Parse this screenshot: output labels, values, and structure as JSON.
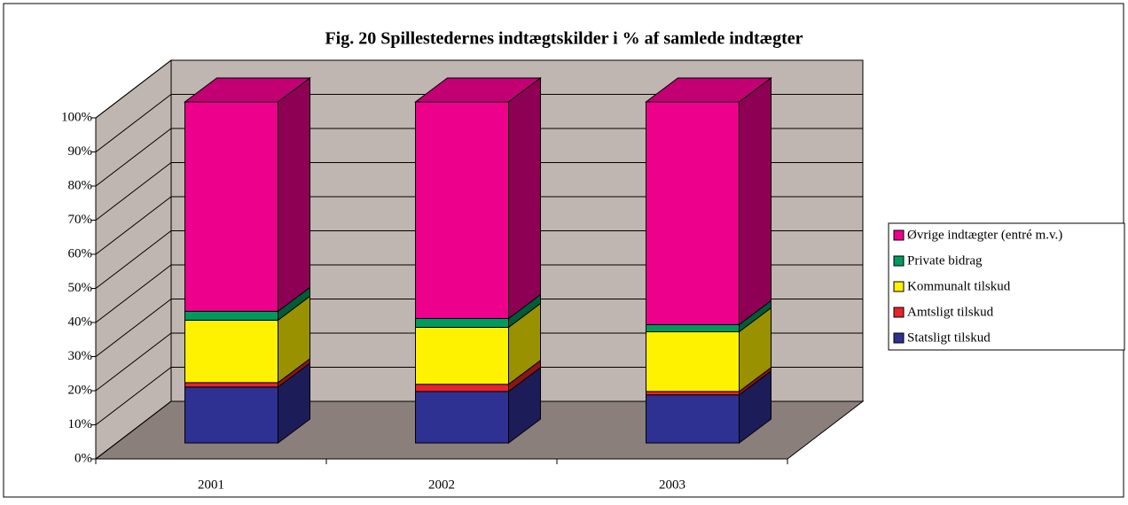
{
  "chart_data": {
    "type": "bar3d_stacked",
    "title": "Fig. 20 Spillestedernes indtægtskilder i % af samlede indtægter",
    "categories": [
      "2001",
      "2002",
      "2003"
    ],
    "series": [
      {
        "name": "Statsligt tilskud",
        "color": "#2e3192",
        "values": [
          16.4,
          15.1,
          14.1
        ]
      },
      {
        "name": "Amtsligt tilskud",
        "color": "#e8232a",
        "values": [
          1.3,
          2.1,
          1.0
        ]
      },
      {
        "name": "Kommunalt tilskud",
        "color": "#fff200",
        "values": [
          18.3,
          16.7,
          17.5
        ]
      },
      {
        "name": "Private bidrag",
        "color": "#009a5e",
        "values": [
          2.6,
          2.6,
          2.1
        ]
      },
      {
        "name": "Øvrige indtægter (entré m.v.)",
        "color": "#ec008c",
        "values": [
          61.4,
          63.5,
          65.3
        ]
      }
    ],
    "ylim": [
      0,
      100
    ],
    "yticks": [
      {
        "value": 0,
        "label": "0%"
      },
      {
        "value": 10,
        "label": "10%"
      },
      {
        "value": 20,
        "label": "20%"
      },
      {
        "value": 30,
        "label": "30%"
      },
      {
        "value": 40,
        "label": "40%"
      },
      {
        "value": 50,
        "label": "50%"
      },
      {
        "value": 60,
        "label": "60%"
      },
      {
        "value": 70,
        "label": "70%"
      },
      {
        "value": 80,
        "label": "80%"
      },
      {
        "value": 90,
        "label": "90%"
      },
      {
        "value": 100,
        "label": "100%"
      }
    ],
    "grid": true,
    "legend": "right"
  }
}
